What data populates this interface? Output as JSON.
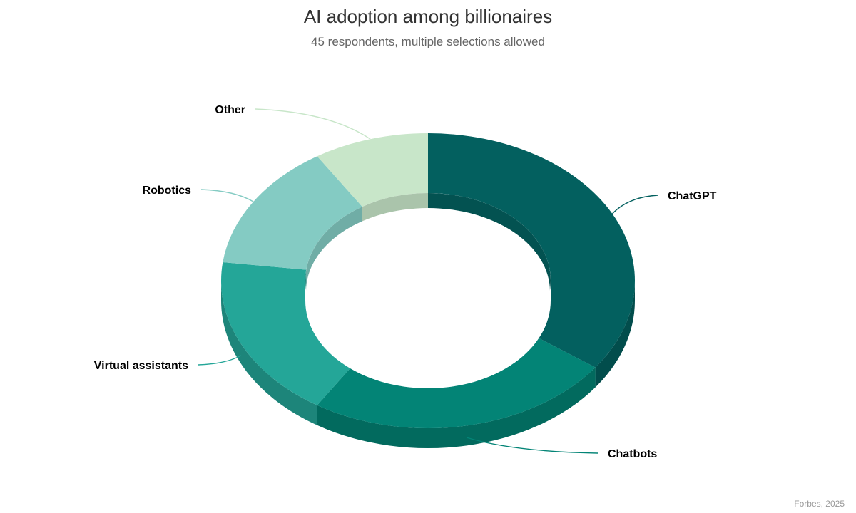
{
  "chart_data": {
    "type": "pie",
    "variant": "3d-donut",
    "title": "AI adoption among billionaires",
    "subtitle": "45 respondents, multiple selections allowed",
    "credit": "Forbes, 2025",
    "slices": [
      {
        "name": "ChatGPT",
        "value": 35,
        "color": "#03605f"
      },
      {
        "name": "Chatbots",
        "value": 24,
        "color": "#038476"
      },
      {
        "name": "Virtual assistants",
        "value": 18,
        "color": "#24a698"
      },
      {
        "name": "Robotics",
        "value": 14,
        "color": "#84cbc3"
      },
      {
        "name": "Other",
        "value": 9,
        "color": "#c8e6c9"
      }
    ],
    "legend": "none",
    "data_labels": "outside-with-connectors"
  }
}
